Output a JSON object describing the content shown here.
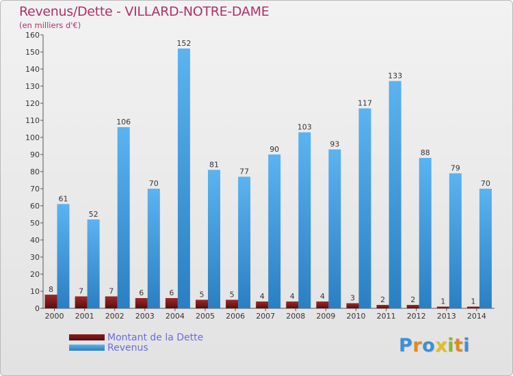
{
  "title": "Revenus/Dette - VILLARD-NOTRE-DAME",
  "subtitle": "(en milliers d'€)",
  "legend": {
    "dette_label": "Montant de la Dette",
    "revenus_label": "Revenus"
  },
  "logo": {
    "text": "Proxiti"
  },
  "colors": {
    "dette": "#7a1414",
    "revenus": "#3d9de0",
    "title": "#b0306a",
    "legend_text": "#6a6adf"
  },
  "chart_data": {
    "type": "bar",
    "title": "Revenus/Dette - VILLARD-NOTRE-DAME",
    "ylabel": "(en milliers d'€)",
    "xlabel": "",
    "ylim": [
      0,
      160
    ],
    "yticks": [
      0,
      10,
      20,
      30,
      40,
      50,
      60,
      70,
      80,
      90,
      100,
      110,
      120,
      130,
      140,
      150,
      160
    ],
    "grid": false,
    "legend_position": "bottom-left",
    "categories": [
      "2000",
      "2001",
      "2002",
      "2003",
      "2004",
      "2005",
      "2006",
      "2007",
      "2008",
      "2009",
      "2010",
      "2011",
      "2012",
      "2013",
      "2014"
    ],
    "series": [
      {
        "name": "Montant de la Dette",
        "values": [
          8,
          7,
          7,
          6,
          6,
          5,
          5,
          4,
          4,
          4,
          3,
          2,
          2,
          1,
          1
        ]
      },
      {
        "name": "Revenus",
        "values": [
          61,
          52,
          106,
          70,
          152,
          81,
          77,
          90,
          103,
          93,
          117,
          133,
          88,
          79,
          70
        ]
      }
    ]
  }
}
